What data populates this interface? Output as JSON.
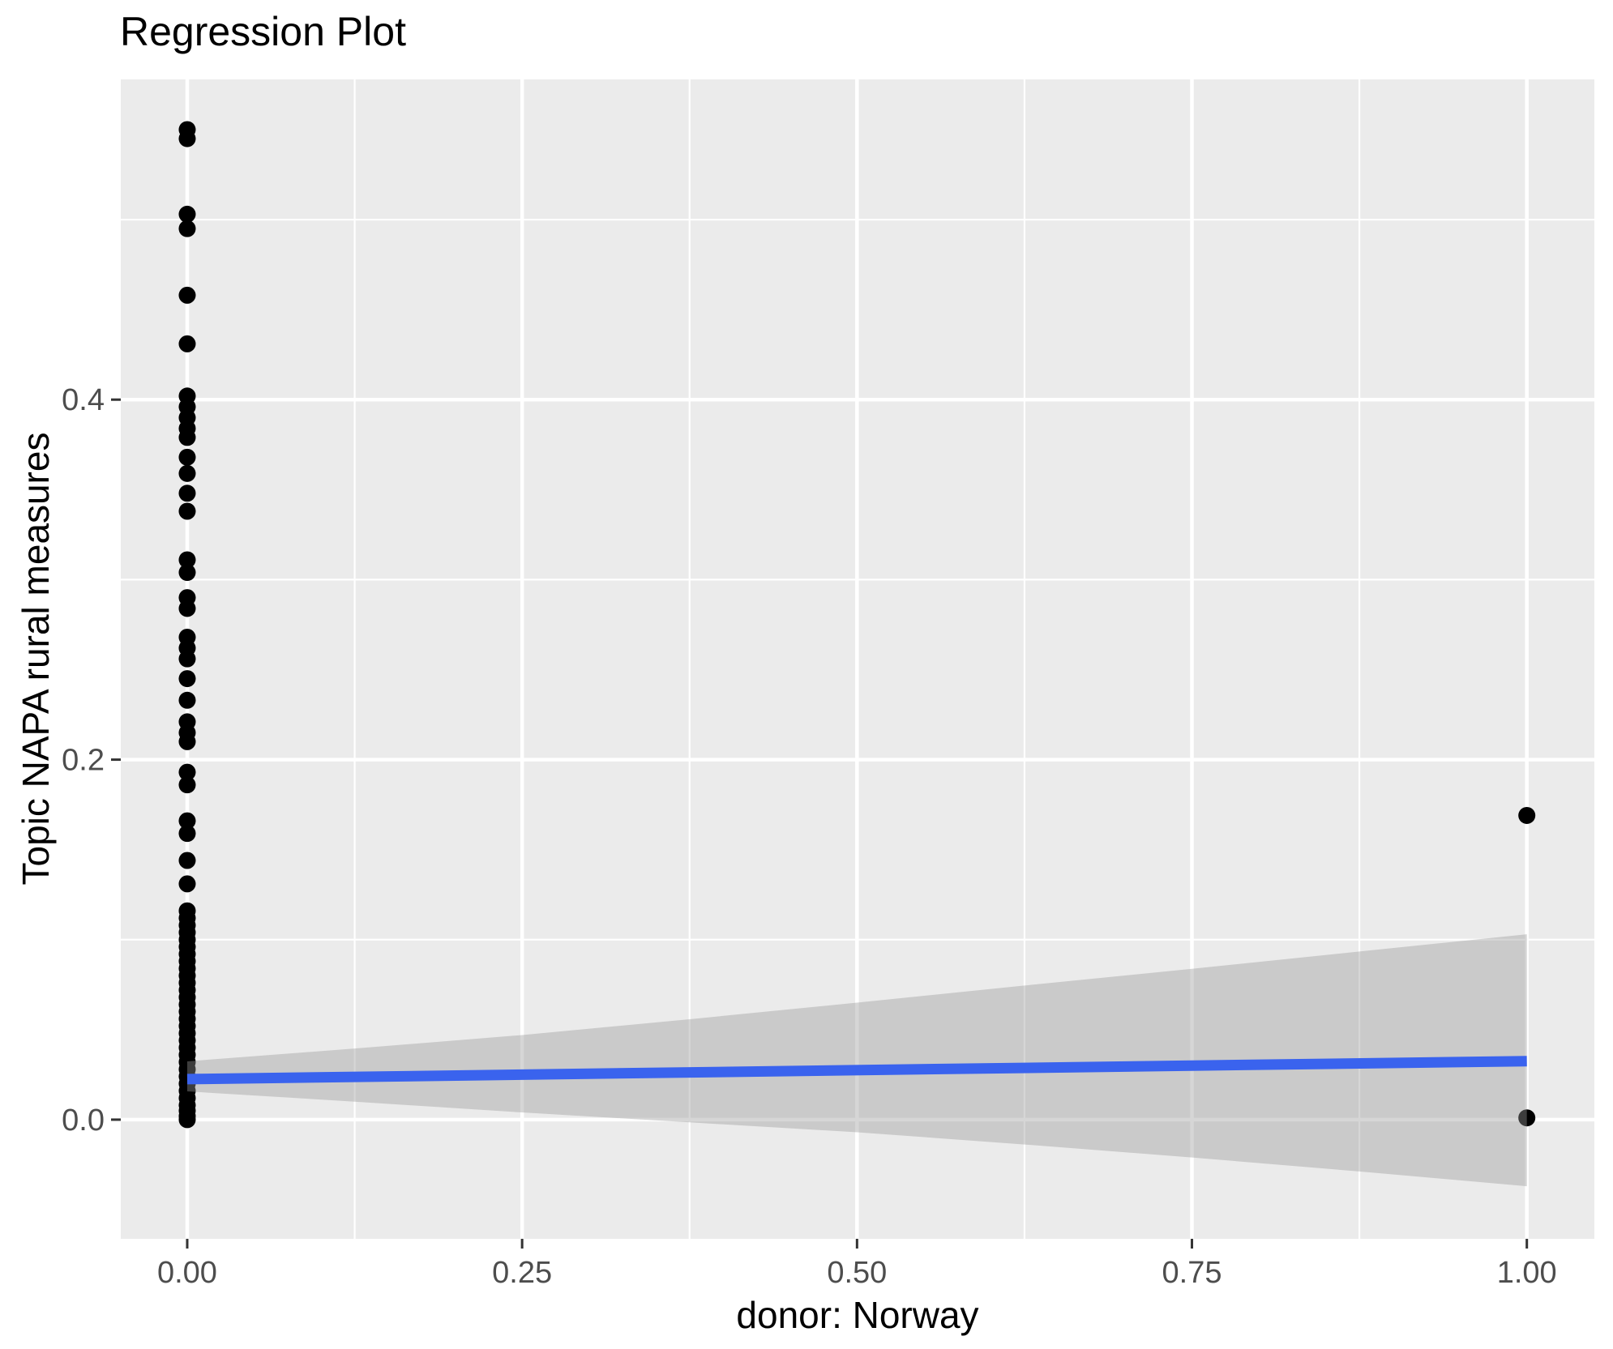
{
  "title": "Regression Plot",
  "axes": {
    "x": {
      "label": "donor: Norway",
      "tick_labels": [
        "0.00",
        "0.25",
        "0.50",
        "0.75",
        "1.00"
      ],
      "tick_values": [
        0,
        0.25,
        0.5,
        0.75,
        1
      ],
      "minor_values": [
        0.125,
        0.375,
        0.625,
        0.875
      ]
    },
    "y": {
      "label": "Topic NAPA rural measures",
      "tick_labels": [
        "0.0",
        "0.2",
        "0.4"
      ],
      "tick_values": [
        0,
        0.2,
        0.4
      ],
      "minor_values": [
        0.1,
        0.3,
        0.5
      ]
    }
  },
  "colors": {
    "panel_background": "#EBEBEB",
    "gridline": "#FFFFFF",
    "point": "#000000",
    "regression_line": "#3A63EE",
    "ci_ribbon": "#999999",
    "ci_ribbon_opacity": 0.4,
    "tick_text": "#4D4D4D",
    "tick_mark": "#333333",
    "title_text": "#000000"
  },
  "chart_data": {
    "type": "scatter",
    "title": "Regression Plot",
    "xlabel": "donor: Norway",
    "ylabel": "Topic NAPA rural measures",
    "xlim": [
      -0.0496,
      1.0504
    ],
    "ylim": [
      -0.0662,
      0.5779
    ],
    "grid": "on",
    "legend": "none",
    "points": [
      [
        0,
        0.55
      ],
      [
        0,
        0.545
      ],
      [
        0,
        0.503
      ],
      [
        0,
        0.495
      ],
      [
        0,
        0.458
      ],
      [
        0,
        0.431
      ],
      [
        0,
        0.402
      ],
      [
        0,
        0.396
      ],
      [
        0,
        0.39
      ],
      [
        0,
        0.384
      ],
      [
        0,
        0.379
      ],
      [
        0,
        0.368
      ],
      [
        0,
        0.359
      ],
      [
        0,
        0.348
      ],
      [
        0,
        0.338
      ],
      [
        0,
        0.311
      ],
      [
        0,
        0.304
      ],
      [
        0,
        0.29
      ],
      [
        0,
        0.284
      ],
      [
        0,
        0.268
      ],
      [
        0,
        0.262
      ],
      [
        0,
        0.256
      ],
      [
        0,
        0.245
      ],
      [
        0,
        0.233
      ],
      [
        0,
        0.221
      ],
      [
        0,
        0.215
      ],
      [
        0,
        0.21
      ],
      [
        0,
        0.193
      ],
      [
        0,
        0.186
      ],
      [
        0,
        0.166
      ],
      [
        0,
        0.159
      ],
      [
        0,
        0.144
      ],
      [
        0,
        0.131
      ],
      [
        0,
        0.116
      ],
      [
        0,
        0.112
      ],
      [
        0,
        0.108
      ],
      [
        0,
        0.104
      ],
      [
        0,
        0.1
      ],
      [
        0,
        0.096
      ],
      [
        0,
        0.092
      ],
      [
        0,
        0.088
      ],
      [
        0,
        0.084
      ],
      [
        0,
        0.08
      ],
      [
        0,
        0.076
      ],
      [
        0,
        0.072
      ],
      [
        0,
        0.068
      ],
      [
        0,
        0.064
      ],
      [
        0,
        0.06
      ],
      [
        0,
        0.056
      ],
      [
        0,
        0.052
      ],
      [
        0,
        0.048
      ],
      [
        0,
        0.044
      ],
      [
        0,
        0.04
      ],
      [
        0,
        0.036
      ],
      [
        0,
        0.032
      ],
      [
        0,
        0.028
      ],
      [
        0,
        0.024
      ],
      [
        0,
        0.02
      ],
      [
        0,
        0.016
      ],
      [
        0,
        0.012
      ],
      [
        0,
        0.008
      ],
      [
        0,
        0.005
      ],
      [
        0,
        0.002
      ],
      [
        0,
        0.0
      ],
      [
        1,
        0.169
      ],
      [
        1,
        0.001
      ]
    ],
    "regression_line": {
      "x": [
        0,
        1
      ],
      "y": [
        0.0225,
        0.0325
      ]
    },
    "ci_ribbon": {
      "x": [
        0,
        0.125,
        0.25,
        0.375,
        0.5,
        0.625,
        0.75,
        0.875,
        1
      ],
      "upper": [
        0.0324,
        0.0395,
        0.047,
        0.0558,
        0.065,
        0.0745,
        0.0838,
        0.0934,
        0.103
      ],
      "lower": [
        0.0157,
        0.01,
        0.004,
        -0.0015,
        -0.007,
        -0.0138,
        -0.021,
        -0.0288,
        -0.037
      ]
    }
  }
}
